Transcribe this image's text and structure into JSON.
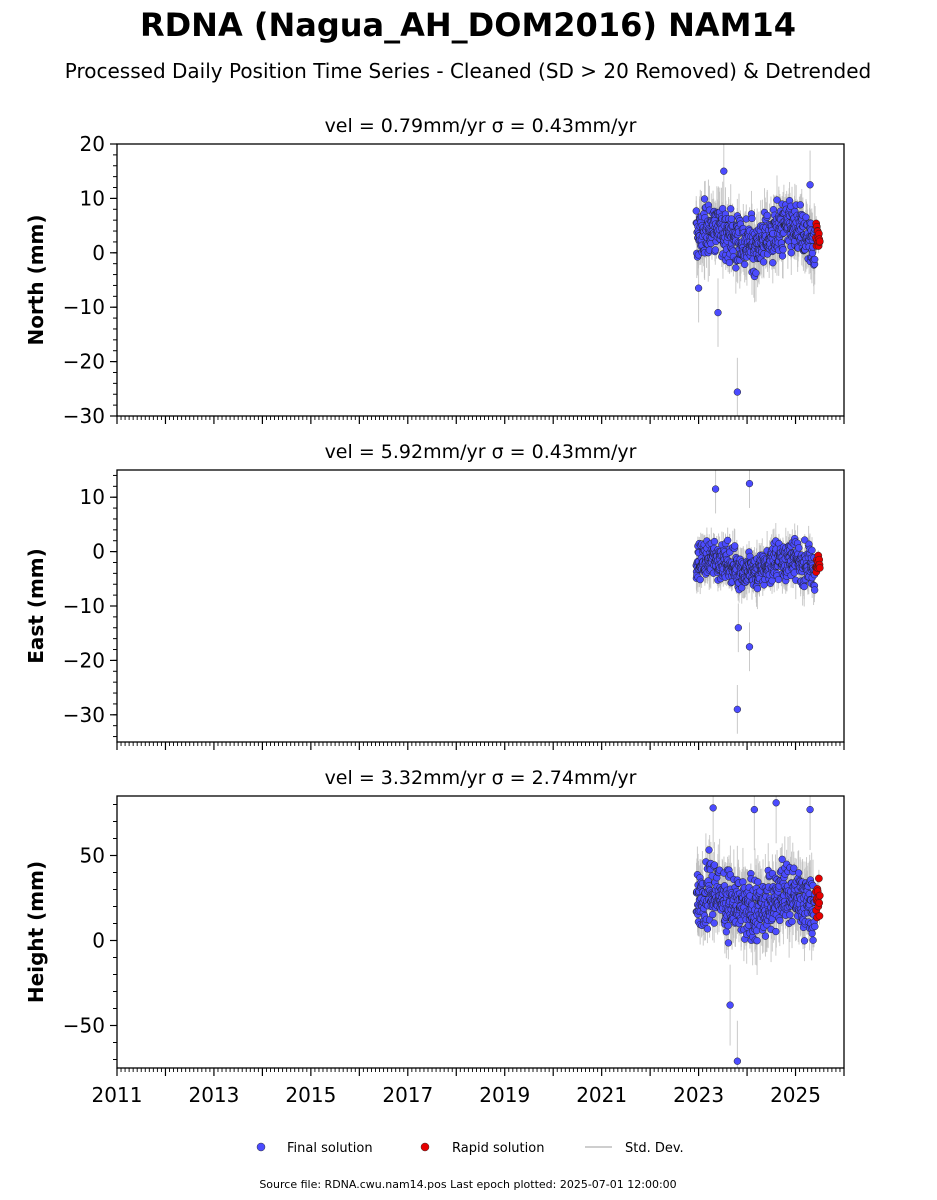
{
  "figure": {
    "title": "RDNA (Nagua_AH_DOM2016) NAM14",
    "subtitle": "Processed Daily Position Time Series - Cleaned (SD > 20 Removed) & Detrended",
    "source_note": "Source file: RDNA.cwu.nam14.pos  Last epoch plotted: 2025-07-01 12:00:00"
  },
  "legend": {
    "final_label": "Final solution",
    "rapid_label": "Rapid solution",
    "std_label": "Std. Dev."
  },
  "colors": {
    "final": "#4b4bff",
    "rapid": "#e60000",
    "std": "#bdbdbd"
  },
  "chart_data": [
    {
      "type": "scatter",
      "title": "vel = 0.79mm/yr   σ = 0.43mm/yr",
      "ylabel": "North (mm)",
      "xlim": [
        2011,
        2026
      ],
      "ylim": [
        -30,
        20
      ],
      "yticks": [
        20,
        10,
        0,
        -10,
        -20,
        -30
      ],
      "ytick_labels": [
        "20",
        "10",
        "0",
        "−10",
        "−20",
        "−30"
      ],
      "final_range": [
        2022.95,
        2025.4
      ],
      "rapid_range": [
        2025.42,
        2025.5
      ],
      "final_center": 3,
      "final_spread": 4.5,
      "outliers": [
        [
          2023.8,
          -25.6
        ],
        [
          2023.4,
          -11
        ],
        [
          2023.52,
          15
        ],
        [
          2025.3,
          12.5
        ],
        [
          2023.0,
          -6.5
        ]
      ]
    },
    {
      "type": "scatter",
      "title": "vel = 5.92mm/yr   σ = 0.43mm/yr",
      "ylabel": "East (mm)",
      "xlim": [
        2011,
        2026
      ],
      "ylim": [
        -35,
        15
      ],
      "yticks": [
        10,
        0,
        -10,
        -20,
        -30
      ],
      "ytick_labels": [
        "10",
        "0",
        "−10",
        "−20",
        "−30"
      ],
      "final_range": [
        2022.95,
        2025.4
      ],
      "rapid_range": [
        2025.42,
        2025.5
      ],
      "final_center": -2.5,
      "final_spread": 3.2,
      "outliers": [
        [
          2023.8,
          -29
        ],
        [
          2024.05,
          -17.5
        ],
        [
          2023.82,
          -14
        ],
        [
          2023.35,
          11.5
        ],
        [
          2024.05,
          12.5
        ]
      ]
    },
    {
      "type": "scatter",
      "title": "vel = 3.32mm/yr   σ = 2.74mm/yr",
      "ylabel": "Height (mm)",
      "xlim": [
        2011,
        2026
      ],
      "ylim": [
        -75,
        85
      ],
      "yticks": [
        50,
        0,
        -50
      ],
      "ytick_labels": [
        "50",
        "0",
        "−50"
      ],
      "xticks": [
        2011,
        2013,
        2015,
        2017,
        2019,
        2021,
        2023,
        2025
      ],
      "xtick_labels": [
        "2011",
        "2013",
        "2015",
        "2017",
        "2019",
        "2021",
        "2023",
        "2025"
      ],
      "final_range": [
        2022.95,
        2025.4
      ],
      "rapid_range": [
        2025.42,
        2025.5
      ],
      "final_center": 22,
      "final_spread": 17,
      "outliers": [
        [
          2023.8,
          -71
        ],
        [
          2024.6,
          81
        ],
        [
          2025.3,
          77
        ],
        [
          2023.3,
          78
        ],
        [
          2024.15,
          77
        ],
        [
          2023.65,
          -38
        ]
      ]
    }
  ]
}
